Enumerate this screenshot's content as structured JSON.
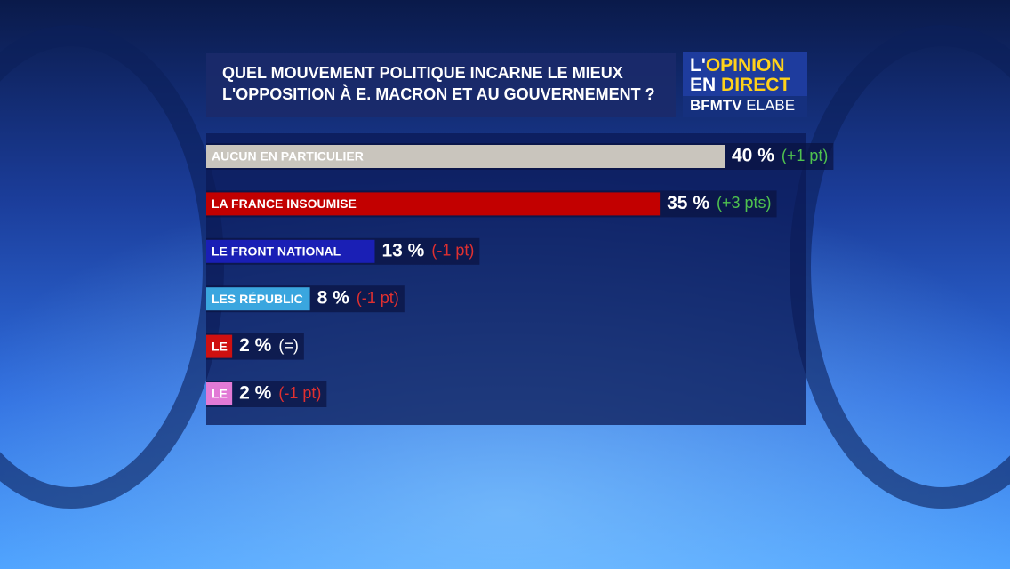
{
  "chart_data": {
    "type": "hbar",
    "title": [
      "QUEL MOUVEMENT POLITIQUE INCARNE LE MIEUX",
      "L'OPPOSITION À E. MACRON ET AU GOUVERNEMENT ?"
    ],
    "logo": {
      "line1": [
        "L'",
        "OPINION"
      ],
      "line2": [
        "EN",
        "DIRECT"
      ],
      "line3": [
        "BFMTV",
        "ELABE"
      ]
    },
    "categories": [
      "AUCUN EN PARTICULIER",
      "LA FRANCE INSOUMISE",
      "LE FRONT NATIONAL",
      "LES RÉPUBLIC",
      "LE",
      "LE"
    ],
    "values": [
      40,
      35,
      13,
      8,
      2,
      2
    ],
    "value_labels": [
      "40 %",
      "35 %",
      "13 %",
      "8 %",
      "2 %",
      "2 %"
    ],
    "colors": [
      "#c9c5bd",
      "#c20000",
      "#1a1fb5",
      "#3aa6df",
      "#cf1010",
      "#e27ad6"
    ],
    "changes": [
      "(+1 pt)",
      "(+3 pts)",
      "(-1 pt)",
      "(-1 pt)",
      "(=)",
      "(-1 pt)"
    ],
    "change_colors": [
      "#4fc24f",
      "#4fc24f",
      "#e03030",
      "#e03030",
      "#ffffff",
      "#e03030"
    ]
  }
}
